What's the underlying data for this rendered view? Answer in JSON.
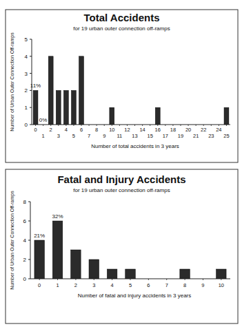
{
  "chart_data": [
    {
      "type": "bar",
      "title": "Total Accidents",
      "subtitle": "for 19 urban outer connection off-ramps",
      "x_label": "Number of total accidents in 3 years",
      "y_label": "Number of Urban Outer Connection Off-ramps",
      "categories": [
        0,
        1,
        2,
        3,
        4,
        5,
        6,
        7,
        8,
        9,
        10,
        11,
        12,
        13,
        14,
        15,
        16,
        17,
        18,
        19,
        20,
        21,
        22,
        23,
        24,
        25
      ],
      "values": [
        2,
        0,
        4,
        2,
        2,
        2,
        4,
        0,
        0,
        0,
        1,
        0,
        0,
        0,
        0,
        0,
        1,
        0,
        0,
        0,
        0,
        0,
        0,
        0,
        0,
        1
      ],
      "color": "#2b2b2b",
      "ylim": [
        0,
        5
      ],
      "yticks": [
        0,
        1,
        2,
        3,
        4,
        5
      ],
      "grid": false,
      "annotations": [
        {
          "text": "11%",
          "x": 0
        },
        {
          "text": "0%",
          "x": 1
        }
      ]
    },
    {
      "type": "bar",
      "title": "Fatal and Injury Accidents",
      "subtitle": "for 19 urban outer connection off-ramps",
      "x_label": "Number of fatal and injury accidents in 3 years",
      "y_label": "Number of Urban Outer Connection Off-ramps",
      "categories": [
        0,
        1,
        2,
        3,
        4,
        5,
        6,
        7,
        8,
        9,
        10
      ],
      "values": [
        4,
        6,
        3,
        2,
        1,
        1,
        0,
        0,
        1,
        0,
        1
      ],
      "color": "#2b2b2b",
      "ylim": [
        0,
        8
      ],
      "yticks": [
        0,
        2,
        4,
        6,
        8
      ],
      "grid": false,
      "annotations": [
        {
          "text": "21%",
          "x": 0
        },
        {
          "text": "32%",
          "x": 1
        }
      ]
    }
  ]
}
